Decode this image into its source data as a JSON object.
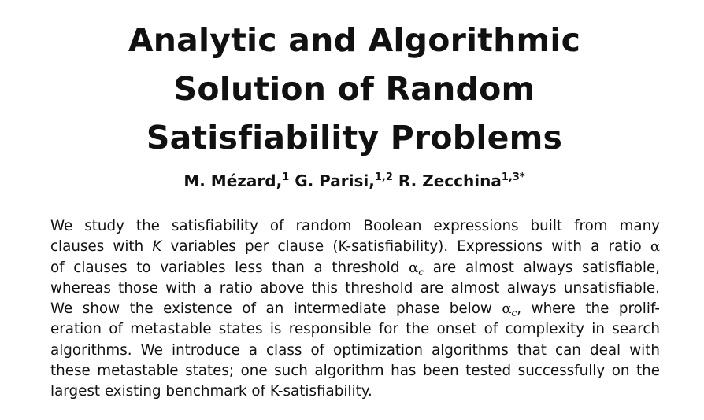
{
  "title": {
    "line1": "Analytic and Algorithmic",
    "line2": "Solution of Random",
    "line3": "Satisfiability Problems"
  },
  "authors": [
    {
      "name": "M. Mézard,",
      "affil": "1"
    },
    {
      "name": "G. Parisi,",
      "affil": "1,2"
    },
    {
      "name": "R. Zecchina",
      "affil": "1,3*"
    }
  ],
  "abstract": {
    "l1": "We study the satisfiability of random Boolean expressions built from many",
    "l2a": "clauses with ",
    "l2k": "K",
    "l2b": " variables per clause (K-satisfiability). Expressions with a ratio ",
    "l2alpha": "α",
    "l3a": "of clauses to variables less than a threshold ",
    "l3alpha": "α",
    "l3sub": "c",
    "l3b": " are almost always satisfiable,",
    "l4": "whereas those with a ratio above this threshold are almost always unsatisfiable.",
    "l5a": "We show the existence of an intermediate phase below ",
    "l5alpha": "α",
    "l5sub": "c",
    "l5b": ", where the prolif-",
    "l6": "eration of metastable states is responsible for the onset of complexity in search",
    "l7": "algorithms. We introduce a class of optimization algorithms that can deal with",
    "l8": "these metastable states; one such algorithm has been tested successfully on the",
    "l9": "largest existing benchmark of K-satisfiability."
  }
}
